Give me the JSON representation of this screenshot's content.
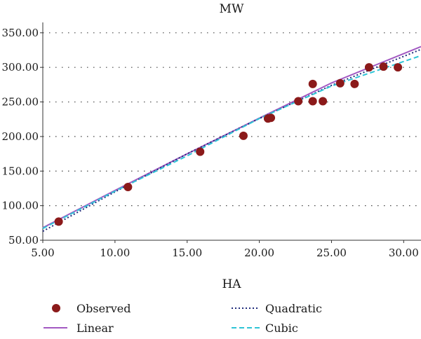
{
  "chart_data": {
    "type": "scatter",
    "ylabel": "MW",
    "xlabel": "HA",
    "xlim": [
      5,
      31.2
    ],
    "ylim": [
      50,
      365
    ],
    "xticks": [
      "5.00",
      "10.00",
      "15.00",
      "20.00",
      "25.00",
      "30.00"
    ],
    "yticks": [
      "50.00",
      "100.00",
      "150.00",
      "200.00",
      "250.00",
      "300.00",
      "350.00"
    ],
    "grid": "horizontal dotted",
    "legend_position": "bottom",
    "series": [
      {
        "name": "Observed",
        "kind": "points",
        "color": "#8b1a1a",
        "points": [
          [
            6.1,
            77.0
          ],
          [
            10.9,
            127.0
          ],
          [
            15.9,
            178.0
          ],
          [
            18.9,
            201.0
          ],
          [
            20.6,
            226.0
          ],
          [
            20.8,
            227.0
          ],
          [
            22.7,
            251.0
          ],
          [
            23.7,
            276.0
          ],
          [
            23.7,
            251.0
          ],
          [
            24.4,
            251.0
          ],
          [
            25.6,
            277.0
          ],
          [
            26.6,
            276.0
          ],
          [
            27.6,
            300.0
          ],
          [
            28.6,
            301.0
          ],
          [
            29.6,
            300.0
          ]
        ]
      },
      {
        "name": "Linear",
        "kind": "line",
        "color": "#a259c2",
        "dash": "solid",
        "points": [
          [
            5,
            68
          ],
          [
            10,
            122
          ],
          [
            15,
            175
          ],
          [
            20,
            226.5
          ],
          [
            25,
            277.5
          ],
          [
            31.2,
            330
          ]
        ]
      },
      {
        "name": "Quadratic",
        "kind": "line",
        "color": "#1f2a7a",
        "dash": "dotted",
        "points": [
          [
            5,
            63
          ],
          [
            10,
            120
          ],
          [
            15,
            175
          ],
          [
            20,
            226
          ],
          [
            25,
            274
          ],
          [
            31.2,
            326
          ]
        ]
      },
      {
        "name": "Cubic",
        "kind": "line",
        "color": "#2ec4d6",
        "dash": "dashed",
        "points": [
          [
            5,
            67
          ],
          [
            10,
            121
          ],
          [
            15,
            172
          ],
          [
            20,
            226
          ],
          [
            25,
            273
          ],
          [
            31.2,
            317
          ]
        ]
      }
    ]
  }
}
